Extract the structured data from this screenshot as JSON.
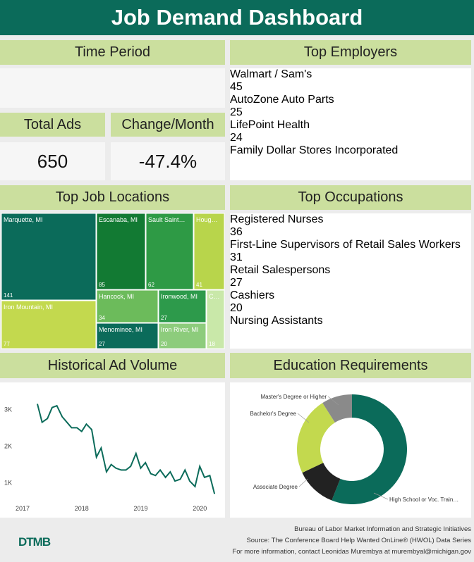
{
  "header": {
    "title": "Job Demand Dashboard"
  },
  "time_period": {
    "title": "Time Period"
  },
  "total_ads": {
    "title": "Total Ads",
    "value": 650
  },
  "change_month": {
    "title": "Change/Month",
    "value": "-47.4%"
  },
  "top_employers": {
    "title": "Top Employers",
    "items": [
      {
        "name": "Walmart / Sam's",
        "value": 45
      },
      {
        "name": "AutoZone Auto Parts",
        "value": 25
      },
      {
        "name": "LifePoint Health",
        "value": 24
      },
      {
        "name": "Family Dollar Stores Incorporated"
      }
    ]
  },
  "top_occupations": {
    "title": "Top Occupations",
    "items": [
      {
        "name": "Registered Nurses",
        "value": 36
      },
      {
        "name": "First-Line Supervisors of Retail Sales Workers",
        "value": 31
      },
      {
        "name": "Retail Salespersons",
        "value": 27
      },
      {
        "name": "Cashiers",
        "value": 20
      },
      {
        "name": "Nursing Assistants"
      }
    ]
  },
  "chart_data": [
    {
      "type": "treemap",
      "title": "Top Job Locations",
      "categories": [
        "Marquette, MI",
        "Iron Mountain, MI",
        "Escanaba, MI",
        "Sault Saint…",
        "Houg…",
        "Hancock, MI",
        "Menominee, MI",
        "Ironwood, MI",
        "Iron River, MI",
        "C…"
      ],
      "values": [
        141,
        77,
        85,
        62,
        41,
        34,
        27,
        27,
        20,
        18
      ],
      "colors": [
        "#0b6b5a",
        "#c3d94e",
        "#127a33",
        "#2e9a45",
        "#b8d54b",
        "#6cbb5b",
        "#0b6b5a",
        "#2d9a4b",
        "#8dcc7c",
        "#c9e8a9"
      ]
    },
    {
      "type": "line",
      "title": "Historical Ad Volume",
      "x": [
        2017.25,
        2017.33,
        2017.42,
        2017.5,
        2017.58,
        2017.67,
        2017.75,
        2017.83,
        2017.92,
        2018.0,
        2018.08,
        2018.17,
        2018.25,
        2018.33,
        2018.42,
        2018.5,
        2018.58,
        2018.67,
        2018.75,
        2018.83,
        2018.92,
        2019.0,
        2019.08,
        2019.17,
        2019.25,
        2019.33,
        2019.42,
        2019.5,
        2019.58,
        2019.67,
        2019.75,
        2019.83,
        2019.92,
        2020.0,
        2020.08,
        2020.17,
        2020.25
      ],
      "series": [
        {
          "color": "#0b6b5a",
          "values": [
            3150,
            2650,
            2750,
            3050,
            3100,
            2800,
            2650,
            2500,
            2500,
            2400,
            2600,
            2450,
            1700,
            1950,
            1300,
            1500,
            1400,
            1350,
            1350,
            1450,
            1800,
            1400,
            1550,
            1250,
            1200,
            1350,
            1150,
            1300,
            1050,
            1100,
            1350,
            1050,
            900,
            1450,
            1150,
            1200,
            700
          ]
        }
      ],
      "xlim": [
        2016.88,
        2020.32
      ],
      "ylim": [
        150,
        3600
      ],
      "xticks": [
        2017,
        2018,
        2019,
        2020
      ],
      "yticks": [
        {
          "value": 1000,
          "label": "1K"
        },
        {
          "value": 2000,
          "label": "2K"
        },
        {
          "value": 3000,
          "label": "3K"
        }
      ]
    },
    {
      "type": "pie",
      "donut": true,
      "title": "Education Requirements",
      "categories": [
        "High School or Voc. Train…",
        "Associate Degree",
        "Bachelor's Degree",
        "Master's Degree or Higher"
      ],
      "values": [
        56,
        12,
        23,
        9
      ],
      "colors": [
        "#0b6b5a",
        "#222222",
        "#c3d94e",
        "#8a8a8a"
      ]
    }
  ],
  "footer": {
    "logo": "DTMB",
    "lines": [
      "Bureau of Labor Market Information and Strategic Initiatives",
      "Source: The Conference Board Help Wanted OnLine® (HWOL) Data Series",
      "For more information, contact Leonidas Murembya at murembyal@michigan.gov"
    ]
  }
}
